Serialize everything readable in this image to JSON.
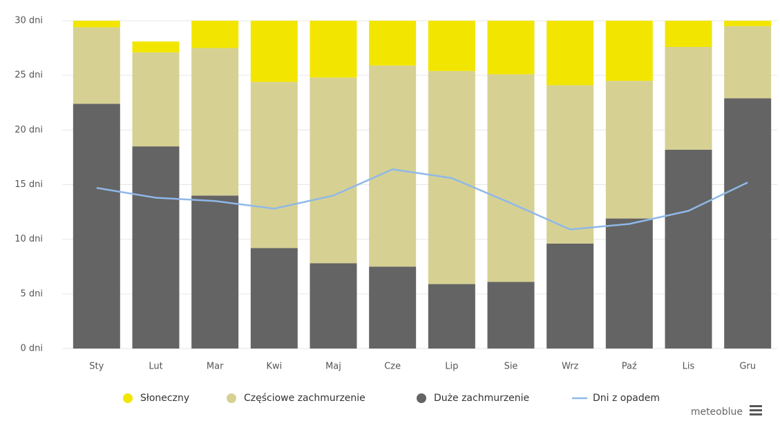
{
  "chart_data": {
    "type": "stacked-bar-line",
    "categories": [
      "Sty",
      "Lut",
      "Mar",
      "Kwi",
      "Maj",
      "Cze",
      "Lip",
      "Sie",
      "Wrz",
      "Paź",
      "Lis",
      "Gru"
    ],
    "series": [
      {
        "name": "Słoneczny",
        "color": "#f2e600",
        "values": [
          1.6,
          1.0,
          3.5,
          5.6,
          6.2,
          4.1,
          5.6,
          5.9,
          5.9,
          6.5,
          2.4,
          1.5
        ]
      },
      {
        "name": "Częściowe zachmurzenie",
        "color": "#d6d193",
        "values": [
          7.0,
          8.6,
          13.5,
          15.2,
          17.0,
          18.4,
          19.5,
          19.0,
          14.5,
          12.6,
          9.4,
          6.6
        ]
      },
      {
        "name": "Duże zachmurzenie",
        "color": "#646464",
        "values": [
          22.4,
          18.5,
          14.0,
          9.2,
          7.8,
          7.5,
          5.9,
          6.1,
          9.6,
          11.9,
          18.2,
          22.9
        ]
      },
      {
        "name": "Dni z opadem",
        "color": "#8fb8e8",
        "type": "line",
        "values": [
          14.7,
          13.8,
          13.5,
          12.8,
          14.0,
          16.4,
          15.6,
          13.3,
          10.9,
          11.4,
          12.6,
          15.2
        ]
      }
    ],
    "ylim": [
      0,
      30
    ],
    "yticks": [
      {
        "value": 0,
        "label": "0 dni"
      },
      {
        "value": 5,
        "label": "5 dni"
      },
      {
        "value": 10,
        "label": "10 dni"
      },
      {
        "value": 15,
        "label": "15 dni"
      },
      {
        "value": 20,
        "label": "20 dni"
      },
      {
        "value": 25,
        "label": "25 dni"
      },
      {
        "value": 30,
        "label": "30 dni"
      }
    ],
    "grid": true,
    "legend": "bottom",
    "credit": "meteoblue"
  }
}
